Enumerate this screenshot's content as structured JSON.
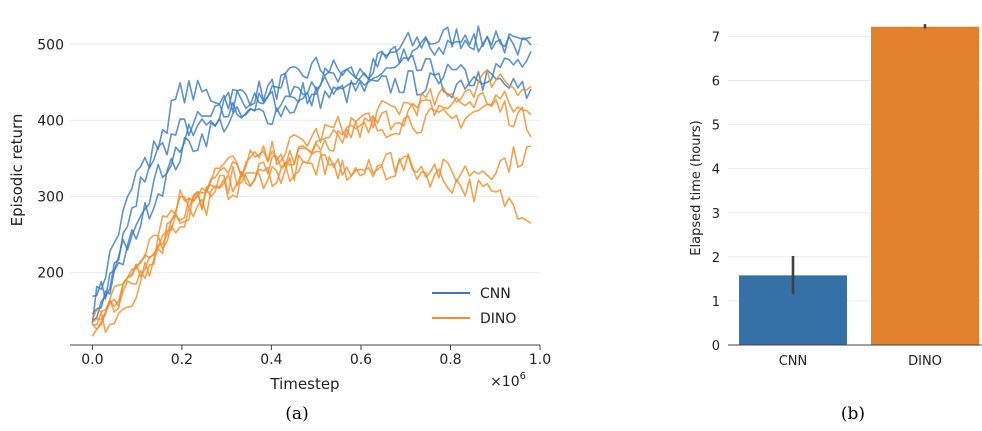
{
  "chart_data": [
    {
      "type": "line",
      "xlabel": "Timestep",
      "ylabel": "Episodic return",
      "x_multiplier_label": "×10",
      "x_multiplier_exp": "6",
      "xlim": [
        -0.05,
        1.0
      ],
      "ylim": [
        105,
        545
      ],
      "xticks": [
        0.0,
        0.2,
        0.4,
        0.6,
        0.8,
        1.0
      ],
      "xtick_labels": [
        "0.0",
        "0.2",
        "0.4",
        "0.6",
        "0.8",
        "1.0"
      ],
      "yticks": [
        200,
        300,
        400,
        500
      ],
      "ytick_labels": [
        "200",
        "300",
        "400",
        "500"
      ],
      "grid": "horizontal",
      "legend_position": "lower-right",
      "legend": [
        {
          "name": "CNN",
          "color": "#3a7bbf"
        },
        {
          "name": "DINO",
          "color": "#f28e2b"
        }
      ],
      "groups": [
        {
          "name": "CNN",
          "color": "#3a7bbf",
          "anchors": [
            {
              "x": [
                0.0,
                0.05,
                0.1,
                0.15,
                0.2,
                0.3,
                0.4,
                0.5,
                0.6,
                0.7,
                0.8,
                0.9,
                0.98
              ],
              "y": [
                150,
                240,
                330,
                360,
                390,
                410,
                425,
                440,
                455,
                500,
                510,
                505,
                490
              ]
            },
            {
              "x": [
                0.0,
                0.05,
                0.1,
                0.15,
                0.2,
                0.3,
                0.4,
                0.5,
                0.6,
                0.7,
                0.8,
                0.9,
                0.98
              ],
              "y": [
                145,
                210,
                300,
                380,
                440,
                430,
                440,
                470,
                460,
                490,
                500,
                510,
                495
              ]
            },
            {
              "x": [
                0.0,
                0.05,
                0.1,
                0.15,
                0.2,
                0.3,
                0.4,
                0.5,
                0.6,
                0.7,
                0.8,
                0.9,
                0.98
              ],
              "y": [
                155,
                200,
                280,
                330,
                370,
                420,
                440,
                455,
                450,
                470,
                460,
                450,
                435
              ]
            },
            {
              "x": [
                0.0,
                0.05,
                0.1,
                0.15,
                0.2,
                0.3,
                0.4,
                0.5,
                0.6,
                0.7,
                0.8,
                0.9,
                0.98
              ],
              "y": [
                148,
                190,
                260,
                310,
                360,
                400,
                410,
                430,
                440,
                450,
                445,
                470,
                475
              ]
            }
          ]
        },
        {
          "name": "DINO",
          "color": "#f28e2b",
          "anchors": [
            {
              "x": [
                0.0,
                0.05,
                0.1,
                0.15,
                0.2,
                0.3,
                0.4,
                0.5,
                0.6,
                0.7,
                0.8,
                0.9,
                0.98
              ],
              "y": [
                130,
                160,
                210,
                250,
                280,
                320,
                340,
                360,
                390,
                410,
                420,
                430,
                405
              ]
            },
            {
              "x": [
                0.0,
                0.05,
                0.1,
                0.15,
                0.2,
                0.3,
                0.4,
                0.5,
                0.6,
                0.7,
                0.8,
                0.9,
                0.98
              ],
              "y": [
                128,
                170,
                220,
                265,
                300,
                330,
                355,
                380,
                400,
                420,
                430,
                460,
                440
              ]
            },
            {
              "x": [
                0.0,
                0.05,
                0.1,
                0.15,
                0.2,
                0.3,
                0.4,
                0.5,
                0.6,
                0.7,
                0.8,
                0.9,
                0.98
              ],
              "y": [
                135,
                150,
                190,
                240,
                270,
                310,
                330,
                340,
                330,
                340,
                320,
                300,
                280
              ]
            },
            {
              "x": [
                0.0,
                0.05,
                0.1,
                0.15,
                0.2,
                0.3,
                0.4,
                0.5,
                0.6,
                0.7,
                0.8,
                0.9,
                0.98
              ],
              "y": [
                132,
                165,
                200,
                235,
                275,
                315,
                330,
                345,
                340,
                350,
                330,
                340,
                360
              ]
            },
            {
              "x": [
                0.0,
                0.05,
                0.1,
                0.15,
                0.2,
                0.3,
                0.4,
                0.5,
                0.6,
                0.7,
                0.8,
                0.9,
                0.98
              ],
              "y": [
                125,
                145,
                180,
                230,
                290,
                340,
                350,
                370,
                385,
                400,
                400,
                420,
                395
              ]
            }
          ]
        }
      ]
    },
    {
      "type": "bar",
      "categories": [
        "CNN",
        "DINO"
      ],
      "values": [
        1.58,
        7.22
      ],
      "error_low": [
        1.15,
        7.18
      ],
      "error_high": [
        2.02,
        7.28
      ],
      "colors": [
        "#3571a6",
        "#e1812c"
      ],
      "ylabel": "Elapsed time (hours)",
      "xlabel": "",
      "ylim": [
        0,
        7.6
      ],
      "yticks": [
        0,
        1,
        2,
        3,
        4,
        5,
        6,
        7
      ],
      "ytick_labels": [
        "0",
        "1",
        "2",
        "3",
        "4",
        "5",
        "6",
        "7"
      ],
      "grid": "horizontal"
    }
  ],
  "captions": {
    "a": "(a)",
    "b": "(b)"
  }
}
